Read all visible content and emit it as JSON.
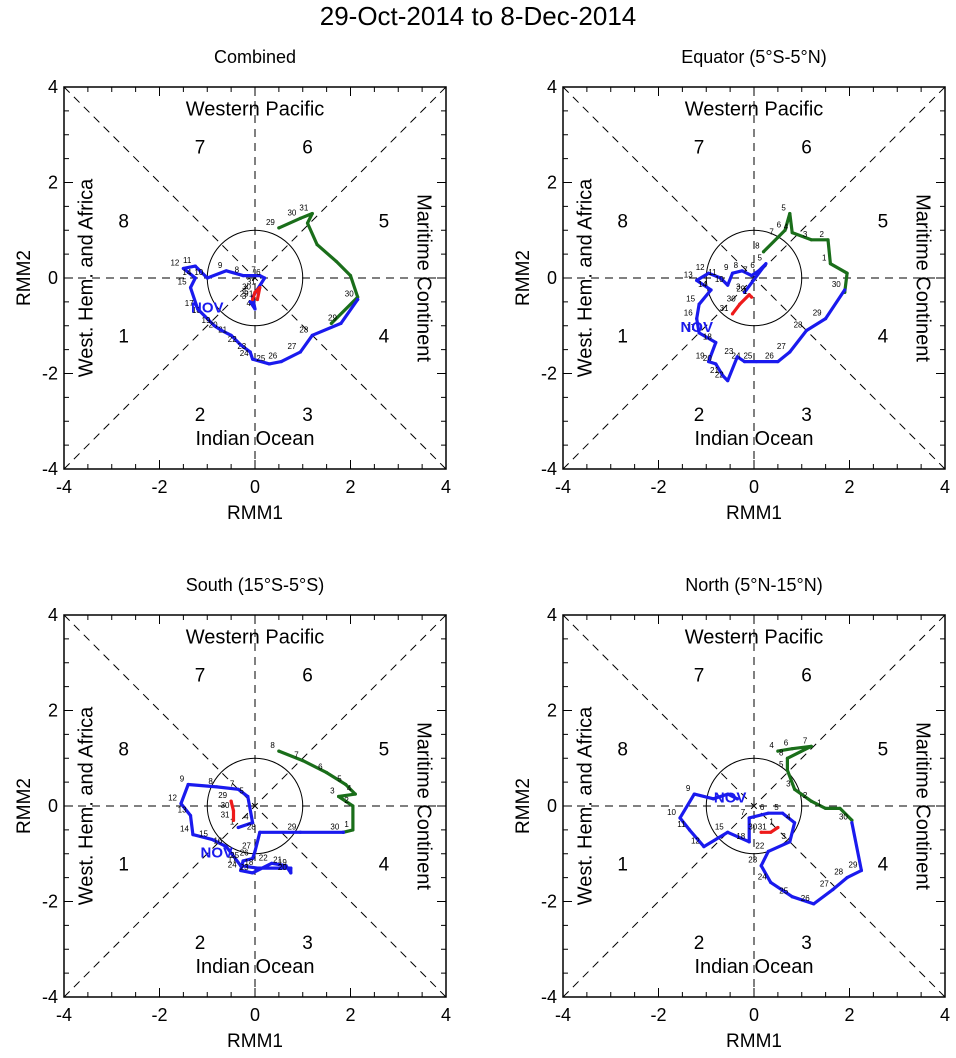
{
  "title": "29-Oct-2014 to 8-Dec-2014",
  "colors": {
    "oct": "#1a6e1a",
    "nov": "#1a1aee",
    "dec": "#ee1a1a",
    "axis": "#000000"
  },
  "chart_data": [
    {
      "type": "line",
      "title": "Combined",
      "xlabel": "RMM1",
      "ylabel": "RMM2",
      "xlim": [
        -4,
        4
      ],
      "ylim": [
        -4,
        4
      ],
      "ticks": [
        "-4",
        "-2",
        "0",
        "2",
        "4"
      ],
      "region_labels": {
        "top": "Western Pacific",
        "bottom": "Indian Ocean",
        "left": "West. Hem. and Africa",
        "right": "Maritime Continent"
      },
      "phase_labels": [
        "1",
        "2",
        "3",
        "4",
        "5",
        "6",
        "7",
        "8"
      ],
      "month_label": "NOV",
      "month_label_pos": [
        -1.0,
        -0.6
      ],
      "series": [
        {
          "name": "Oct",
          "color": "oct",
          "points": [
            [
              0.5,
              1.05
            ],
            [
              0.95,
              1.25
            ],
            [
              1.2,
              1.35
            ],
            [
              1.1,
              1.15
            ],
            [
              1.3,
              0.7
            ],
            [
              1.7,
              0.35
            ],
            [
              2.0,
              0.05
            ],
            [
              2.15,
              -0.4
            ],
            [
              1.6,
              -0.95
            ]
          ],
          "labels": [
            "29",
            "30",
            "31",
            "",
            "",
            "",
            "",
            "",
            ""
          ]
        },
        {
          "name": "Nov",
          "color": "nov",
          "points": [
            [
              2.15,
              -0.45
            ],
            [
              1.8,
              -0.95
            ],
            [
              1.2,
              -1.2
            ],
            [
              0.95,
              -1.55
            ],
            [
              0.55,
              -1.75
            ],
            [
              0.3,
              -1.8
            ],
            [
              -0.05,
              -1.7
            ],
            [
              -0.1,
              -1.55
            ],
            [
              -0.3,
              -1.4
            ],
            [
              -0.5,
              -1.2
            ],
            [
              -0.7,
              -1.1
            ],
            [
              -0.85,
              -1.0
            ],
            [
              -1.05,
              -0.8
            ],
            [
              -1.2,
              -0.65
            ],
            [
              -1.35,
              -0.2
            ],
            [
              -1.25,
              0.0
            ],
            [
              -1.5,
              0.2
            ],
            [
              -1.25,
              0.25
            ],
            [
              -1.0,
              0.0
            ],
            [
              -0.6,
              0.15
            ],
            [
              -0.25,
              0.05
            ],
            [
              0.1,
              0.05
            ],
            [
              0.2,
              0.0
            ],
            [
              -0.05,
              -0.4
            ],
            [
              0.0,
              -0.65
            ],
            [
              -0.1,
              -0.5
            ]
          ],
          "labels": [
            "30",
            "29",
            "28",
            "27",
            "26",
            "25",
            "24",
            "23",
            "22",
            "21",
            "20",
            "19",
            "18",
            "17",
            "15",
            "14",
            "12",
            "11",
            "10",
            "9",
            "8",
            "7",
            "6",
            "5",
            "4",
            "3"
          ]
        },
        {
          "name": "Dec",
          "color": "dec",
          "points": [
            [
              -0.05,
              -0.45
            ],
            [
              0.0,
              -0.3
            ],
            [
              0.1,
              -0.2
            ],
            [
              0.05,
              -0.45
            ]
          ],
          "labels": [
            "29",
            "30",
            "31",
            "1"
          ]
        }
      ]
    },
    {
      "type": "line",
      "title": "Equator (5°S-5°N)",
      "xlabel": "RMM1",
      "ylabel": "RMM2",
      "xlim": [
        -4,
        4
      ],
      "ylim": [
        -4,
        4
      ],
      "ticks": [
        "-4",
        "-2",
        "0",
        "2",
        "4"
      ],
      "region_labels": {
        "top": "Western Pacific",
        "bottom": "Indian Ocean",
        "left": "West. Hem. and Africa",
        "right": "Maritime Continent"
      },
      "phase_labels": [
        "1",
        "2",
        "3",
        "4",
        "5",
        "6",
        "7",
        "8"
      ],
      "month_label": "NOV",
      "month_label_pos": [
        -1.2,
        -1.0
      ],
      "series": [
        {
          "name": "Oct",
          "color": "oct",
          "points": [
            [
              0.2,
              0.55
            ],
            [
              0.5,
              0.85
            ],
            [
              0.65,
              1.0
            ],
            [
              0.75,
              1.35
            ],
            [
              0.8,
              0.95
            ],
            [
              1.2,
              0.8
            ],
            [
              1.55,
              0.8
            ],
            [
              1.6,
              0.3
            ],
            [
              1.95,
              0.1
            ],
            [
              1.9,
              -0.3
            ]
          ],
          "labels": [
            "8",
            "7",
            "6",
            "5",
            "4",
            "3",
            "2",
            "1",
            "",
            ""
          ]
        },
        {
          "name": "Nov",
          "color": "nov",
          "points": [
            [
              1.9,
              -0.25
            ],
            [
              1.5,
              -0.85
            ],
            [
              1.1,
              -1.1
            ],
            [
              0.75,
              -1.55
            ],
            [
              0.5,
              -1.75
            ],
            [
              0.05,
              -1.75
            ],
            [
              -0.2,
              -1.75
            ],
            [
              -0.35,
              -1.65
            ],
            [
              -0.55,
              -2.15
            ],
            [
              -0.65,
              -2.05
            ],
            [
              -0.8,
              -1.8
            ],
            [
              -0.95,
              -1.75
            ],
            [
              -0.8,
              -1.35
            ],
            [
              -1.15,
              -1.15
            ],
            [
              -1.2,
              -0.85
            ],
            [
              -1.15,
              -0.55
            ],
            [
              -0.9,
              -0.25
            ],
            [
              -1.2,
              -0.05
            ],
            [
              -0.95,
              0.1
            ],
            [
              -0.7,
              0.0
            ],
            [
              -0.55,
              -0.15
            ],
            [
              -0.45,
              0.1
            ],
            [
              -0.25,
              0.15
            ],
            [
              -0.05,
              0.05
            ],
            [
              0.1,
              0.15
            ],
            [
              0.25,
              0.3
            ],
            [
              -0.2,
              -0.3
            ]
          ],
          "labels": [
            "30",
            "29",
            "28",
            "27",
            "26",
            "25",
            "24",
            "23",
            "22",
            "21",
            "20",
            "19",
            "18",
            "17",
            "16",
            "15",
            "14",
            "13",
            "12",
            "11",
            "10",
            "9",
            "8",
            "7",
            "6",
            "5",
            "3"
          ]
        },
        {
          "name": "Dec",
          "color": "dec",
          "points": [
            [
              -0.45,
              -0.75
            ],
            [
              -0.3,
              -0.55
            ],
            [
              -0.1,
              -0.35
            ],
            [
              -0.05,
              -0.4
            ]
          ],
          "labels": [
            "31",
            "30",
            "29",
            "1"
          ]
        }
      ]
    },
    {
      "type": "line",
      "title": "South (15°S-5°S)",
      "xlabel": "RMM1",
      "ylabel": "RMM2",
      "xlim": [
        -4,
        4
      ],
      "ylim": [
        -4,
        4
      ],
      "ticks": [
        "-4",
        "-2",
        "0",
        "2",
        "4"
      ],
      "region_labels": {
        "top": "Western Pacific",
        "bottom": "Indian Ocean",
        "left": "West. Hem. and Africa",
        "right": "Maritime Continent"
      },
      "phase_labels": [
        "1",
        "2",
        "3",
        "4",
        "5",
        "6",
        "7",
        "8"
      ],
      "month_label": "NOV",
      "month_label_pos": [
        -0.8,
        -0.95
      ],
      "series": [
        {
          "name": "Oct",
          "color": "oct",
          "points": [
            [
              0.5,
              1.15
            ],
            [
              1.0,
              0.95
            ],
            [
              1.5,
              0.7
            ],
            [
              1.9,
              0.45
            ],
            [
              2.1,
              0.25
            ],
            [
              1.75,
              0.2
            ],
            [
              2.05,
              0.0
            ],
            [
              2.05,
              -0.5
            ],
            [
              1.85,
              -0.55
            ]
          ],
          "labels": [
            "8",
            "7",
            "6",
            "5",
            "4",
            "3",
            "2",
            "1",
            ""
          ]
        },
        {
          "name": "Nov",
          "color": "nov",
          "points": [
            [
              1.85,
              -0.55
            ],
            [
              0.95,
              -0.55
            ],
            [
              0.1,
              -0.55
            ],
            [
              0.0,
              -0.95
            ],
            [
              -0.05,
              -1.1
            ],
            [
              -0.25,
              -1.15
            ],
            [
              -0.3,
              -1.35
            ],
            [
              -0.05,
              -1.4
            ],
            [
              0.35,
              -1.2
            ],
            [
              0.65,
              -1.25
            ],
            [
              0.75,
              -1.4
            ],
            [
              0.75,
              -1.3
            ],
            [
              0.05,
              -1.3
            ],
            [
              -0.3,
              -1.25
            ],
            [
              -0.6,
              -0.85
            ],
            [
              -0.9,
              -0.7
            ],
            [
              -1.3,
              -0.6
            ],
            [
              -1.35,
              -0.2
            ],
            [
              -1.55,
              0.05
            ],
            [
              -1.4,
              0.45
            ],
            [
              -0.8,
              0.4
            ],
            [
              -0.35,
              0.35
            ],
            [
              -0.15,
              0.2
            ],
            [
              -0.05,
              -0.35
            ],
            [
              -0.35,
              -0.45
            ]
          ],
          "labels": [
            "30",
            "29",
            "28",
            "27",
            "26",
            "25",
            "24",
            "23",
            "22",
            "21",
            "20",
            "19",
            "18",
            "17",
            "16",
            "15",
            "14",
            "13",
            "12",
            "9",
            "8",
            "7",
            "5",
            "4",
            "1"
          ]
        },
        {
          "name": "Dec",
          "color": "dec",
          "points": [
            [
              -0.45,
              -0.3
            ],
            [
              -0.45,
              -0.1
            ],
            [
              -0.5,
              0.1
            ]
          ],
          "labels": [
            "31",
            "30",
            "29"
          ]
        }
      ]
    },
    {
      "type": "line",
      "title": "North (5°N-15°N)",
      "xlabel": "RMM1",
      "ylabel": "RMM2",
      "xlim": [
        -4,
        4
      ],
      "ylim": [
        -4,
        4
      ],
      "ticks": [
        "-4",
        "-2",
        "0",
        "2",
        "4"
      ],
      "region_labels": {
        "top": "Western Pacific",
        "bottom": "Indian Ocean",
        "left": "West. Hem. and Africa",
        "right": "Maritime Continent"
      },
      "phase_labels": [
        "1",
        "2",
        "3",
        "4",
        "5",
        "6",
        "7",
        "8"
      ],
      "month_label": "NOV",
      "month_label_pos": [
        -0.5,
        0.2
      ],
      "series": [
        {
          "name": "Oct",
          "color": "oct",
          "points": [
            [
              0.5,
              1.15
            ],
            [
              0.8,
              1.2
            ],
            [
              1.2,
              1.25
            ],
            [
              0.7,
              1.0
            ],
            [
              0.7,
              0.75
            ],
            [
              0.85,
              0.35
            ],
            [
              1.2,
              0.1
            ],
            [
              1.5,
              -0.05
            ],
            [
              1.8,
              -0.05
            ],
            [
              2.05,
              -0.3
            ]
          ],
          "labels": [
            "4",
            "6",
            "7",
            "8",
            "5",
            "3",
            "2",
            "1",
            "",
            ""
          ]
        },
        {
          "name": "Nov",
          "color": "nov",
          "points": [
            [
              2.05,
              -0.35
            ],
            [
              2.25,
              -1.35
            ],
            [
              1.95,
              -1.5
            ],
            [
              1.65,
              -1.75
            ],
            [
              1.25,
              -2.05
            ],
            [
              0.8,
              -1.9
            ],
            [
              0.35,
              -1.6
            ],
            [
              0.15,
              -1.25
            ],
            [
              0.3,
              -0.95
            ],
            [
              0.75,
              -0.75
            ],
            [
              0.85,
              -0.35
            ],
            [
              0.6,
              -0.15
            ],
            [
              0.3,
              -0.15
            ],
            [
              -0.1,
              -0.25
            ],
            [
              -0.1,
              -0.75
            ],
            [
              -0.55,
              -0.55
            ],
            [
              -1.05,
              -0.85
            ],
            [
              -1.35,
              -0.5
            ],
            [
              -1.55,
              -0.25
            ],
            [
              -1.25,
              0.25
            ],
            [
              -0.85,
              0.15
            ],
            [
              -0.55,
              0.25
            ],
            [
              -0.35,
              0.15
            ]
          ],
          "labels": [
            "30",
            "29",
            "28",
            "27",
            "26",
            "25",
            "24",
            "23",
            "22",
            "3",
            "4",
            "5",
            "6",
            "7",
            "18",
            "15",
            "12",
            "11",
            "10",
            "9",
            "",
            "",
            ""
          ]
        },
        {
          "name": "Dec",
          "color": "dec",
          "points": [
            [
              0.15,
              -0.55
            ],
            [
              0.35,
              -0.55
            ],
            [
              0.5,
              -0.45
            ]
          ],
          "labels": [
            "30",
            "31",
            "1"
          ]
        }
      ]
    }
  ]
}
